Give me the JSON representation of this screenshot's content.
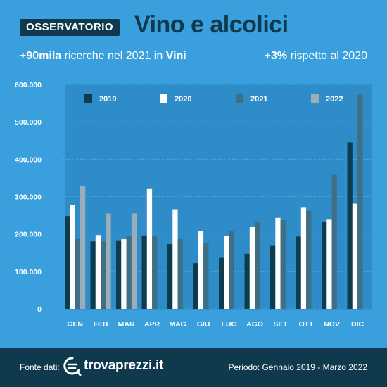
{
  "header": {
    "badge": "OSSERVATORIO",
    "title": "Vino e alcolici",
    "highlight_left_bold": "+90mila",
    "highlight_left_mid": " ricerche nel 2021 in ",
    "highlight_left_bold2": "Vini",
    "highlight_right_bold": "+3%",
    "highlight_right_rest": " rispetto al 2020"
  },
  "footer": {
    "source_label": "Fonte dati:",
    "brand": "trovaprezzi.it",
    "period": "Periodo: Gennaio 2019 - Marzo 2022"
  },
  "colors": {
    "background": "#3a9fdd",
    "plot_panel": "#2e8cc8",
    "dark": "#0f3a4d"
  },
  "chart_data": {
    "type": "bar",
    "categories": [
      "GEN",
      "FEB",
      "MAR",
      "APR",
      "MAG",
      "GIU",
      "LUG",
      "AGO",
      "SET",
      "OTT",
      "NOV",
      "DIC"
    ],
    "series": [
      {
        "name": "2019",
        "color": "#0d3c4f",
        "values": [
          248000,
          180000,
          183000,
          196000,
          173000,
          122000,
          138000,
          147000,
          170000,
          193000,
          233000,
          445000
        ]
      },
      {
        "name": "2020",
        "color": "#ffffff",
        "values": [
          277000,
          197000,
          186000,
          322000,
          266000,
          208000,
          194000,
          220000,
          243000,
          272000,
          240000,
          281000
        ]
      },
      {
        "name": "2021",
        "color": "#3f6f85",
        "values": [
          187000,
          180000,
          194000,
          196000,
          188000,
          176000,
          208000,
          232000,
          237000,
          262000,
          360000,
          573000
        ]
      },
      {
        "name": "2022",
        "color": "#9aaeb9",
        "values": [
          328000,
          255000,
          255000,
          null,
          null,
          null,
          null,
          null,
          null,
          null,
          null,
          null
        ]
      }
    ],
    "yticks": [
      "0",
      "100.000",
      "200.000",
      "300.000",
      "400.000",
      "500.000",
      "600.000"
    ],
    "ylim": [
      0,
      600000
    ],
    "legend": "top"
  }
}
